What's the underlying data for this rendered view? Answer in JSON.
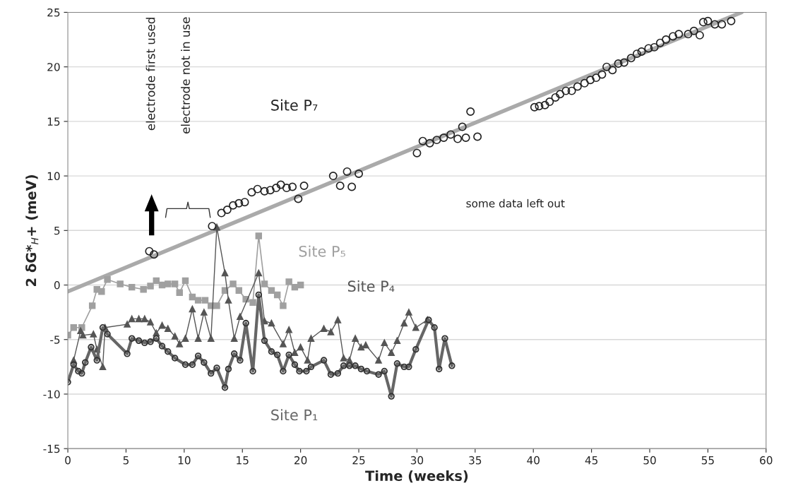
{
  "chart_data": {
    "type": "line",
    "xlabel": "Time (weeks)",
    "ylabel": "2 δG*$_{H}$+ (meV)",
    "xlim": [
      0,
      60
    ],
    "xticks": [
      0,
      5,
      10,
      15,
      20,
      25,
      30,
      35,
      40,
      45,
      50,
      55,
      60
    ],
    "ylim": [
      -15,
      25
    ],
    "yticks": [
      -15,
      -10,
      -5,
      0,
      5,
      10,
      15,
      20,
      25
    ],
    "grid": "y",
    "legend": false,
    "annotations": [
      "electrode first used",
      "electrode not in use",
      "some data left out"
    ],
    "series": [
      {
        "name": "Site P₇",
        "type": "scatter",
        "marker": "circle",
        "color": "#222222",
        "x": [
          7.0,
          7.4,
          12.4,
          13.2,
          13.7,
          14.2,
          14.7,
          15.2,
          15.8,
          16.3,
          16.9,
          17.4,
          17.9,
          18.3,
          18.8,
          19.3,
          19.8,
          20.3,
          22.8,
          23.4,
          24.0,
          24.4,
          25.0,
          30.0,
          30.5,
          31.1,
          31.7,
          32.3,
          32.9,
          33.5,
          33.9,
          34.2,
          34.6,
          35.2,
          40.1,
          40.5,
          41.0,
          41.4,
          41.9,
          42.3,
          42.8,
          43.3,
          43.8,
          44.4,
          44.9,
          45.4,
          45.9,
          46.3,
          46.8,
          47.3,
          47.8,
          48.4,
          48.9,
          49.3,
          49.9,
          50.4,
          50.9,
          51.4,
          52.0,
          52.5,
          53.3,
          53.8,
          54.3,
          54.6,
          55.0,
          55.6,
          56.2,
          57.0
        ],
        "values": [
          3.1,
          2.8,
          5.4,
          6.6,
          6.9,
          7.3,
          7.5,
          7.6,
          8.5,
          8.8,
          8.6,
          8.7,
          8.9,
          9.2,
          8.9,
          9.0,
          7.9,
          9.1,
          10.0,
          9.1,
          10.4,
          9.0,
          10.2,
          12.1,
          13.2,
          13.0,
          13.3,
          13.5,
          13.8,
          13.4,
          14.5,
          13.5,
          15.9,
          13.6,
          16.3,
          16.4,
          16.5,
          16.8,
          17.2,
          17.5,
          17.8,
          17.8,
          18.2,
          18.5,
          18.8,
          19.0,
          19.3,
          20.0,
          19.7,
          20.3,
          20.4,
          20.8,
          21.2,
          21.4,
          21.7,
          21.8,
          22.2,
          22.5,
          22.8,
          23.0,
          23.0,
          23.3,
          22.9,
          24.1,
          24.2,
          23.9,
          23.9,
          24.2
        ]
      },
      {
        "type": "line",
        "color": "#aaaaaa",
        "marker": "none",
        "x": [
          0,
          57.9
        ],
        "values": [
          -0.6,
          25
        ]
      },
      {
        "name": "Site P₅",
        "marker": "square",
        "color": "#a0a0a0",
        "x": [
          0,
          0.5,
          1.2,
          2.1,
          2.5,
          2.9,
          3.4,
          4.5,
          5.5,
          6.5,
          7.1,
          7.6,
          8.1,
          8.6,
          9.2,
          9.6,
          10.1,
          10.7,
          11.2,
          11.8,
          12.3,
          12.8,
          13.5,
          14.2,
          14.7,
          15.3,
          15.9,
          16.4,
          16.9,
          17.5,
          18.0,
          18.5,
          19.0,
          19.5,
          20.0
        ],
        "values": [
          -4.6,
          -3.9,
          -3.9,
          -1.9,
          -0.4,
          -0.6,
          0.5,
          0.1,
          -0.2,
          -0.4,
          -0.1,
          0.4,
          0.0,
          0.1,
          0.1,
          -0.7,
          0.4,
          -1.1,
          -1.4,
          -1.4,
          -1.9,
          -1.9,
          -0.5,
          0.1,
          -0.5,
          -1.3,
          -1.6,
          4.5,
          0.1,
          -0.5,
          -0.9,
          -1.9,
          0.3,
          -0.2,
          0.0
        ]
      },
      {
        "name": "Site P₄",
        "marker": "triangle",
        "color": "#555555",
        "x": [
          0.5,
          1.1,
          1.3,
          2.2,
          2.5,
          3.0,
          3.2,
          5.1,
          5.5,
          6.1,
          6.6,
          7.1,
          7.6,
          8.1,
          8.6,
          9.2,
          9.6,
          10.1,
          10.7,
          11.2,
          11.7,
          12.3,
          12.8,
          13.5,
          13.8,
          14.3,
          14.8,
          16.4,
          16.9,
          17.5,
          18.5,
          19.0,
          19.5,
          20.0,
          20.6,
          20.9,
          22.0,
          22.6,
          23.2,
          23.7,
          24.2,
          24.7,
          25.2,
          25.6,
          26.7,
          27.2,
          27.8,
          28.3,
          28.9,
          29.3,
          29.9,
          30.9
        ],
        "values": [
          -6.9,
          -4.2,
          -4.6,
          -4.5,
          -5.9,
          -7.5,
          -3.9,
          -3.6,
          -3.1,
          -3.1,
          -3.1,
          -3.4,
          -4.4,
          -3.7,
          -4.0,
          -4.7,
          -5.4,
          -4.9,
          -2.2,
          -4.9,
          -2.5,
          -4.9,
          5.3,
          1.1,
          -1.4,
          -4.9,
          -2.9,
          1.1,
          -3.3,
          -3.5,
          -5.4,
          -4.1,
          -6.2,
          -5.7,
          -6.9,
          -4.9,
          -4.0,
          -4.3,
          -3.2,
          -6.7,
          -6.9,
          -4.9,
          -5.7,
          -5.5,
          -6.9,
          -5.3,
          -6.2,
          -5.1,
          -3.5,
          -2.5,
          -3.9,
          -3.2
        ]
      },
      {
        "name": "Site P₁",
        "marker": "circle",
        "color": "#666666",
        "x": [
          0,
          0.5,
          0.9,
          1.2,
          1.5,
          2.0,
          2.5,
          3.0,
          3.4,
          5.1,
          5.5,
          6.1,
          6.6,
          7.1,
          7.6,
          8.1,
          8.6,
          9.2,
          10.1,
          10.7,
          11.2,
          11.7,
          12.3,
          12.8,
          13.5,
          13.8,
          14.3,
          14.8,
          15.3,
          15.9,
          16.4,
          16.9,
          17.5,
          18.0,
          18.5,
          19.0,
          19.5,
          19.9,
          20.5,
          20.9,
          22.0,
          22.6,
          23.2,
          23.7,
          24.2,
          24.7,
          25.2,
          25.7,
          26.7,
          27.2,
          27.8,
          28.3,
          28.9,
          29.3,
          29.9,
          31.0,
          31.5,
          31.9,
          32.4,
          33.0
        ],
        "values": [
          -8.9,
          -7.3,
          -7.9,
          -8.1,
          -7.1,
          -5.7,
          -6.9,
          -3.9,
          -4.5,
          -6.3,
          -4.9,
          -5.1,
          -5.3,
          -5.2,
          -4.9,
          -5.6,
          -6.1,
          -6.7,
          -7.3,
          -7.3,
          -6.5,
          -7.1,
          -8.1,
          -7.6,
          -9.4,
          -7.7,
          -6.3,
          -6.9,
          -3.5,
          -7.9,
          -0.9,
          -5.1,
          -6.1,
          -6.4,
          -7.9,
          -6.4,
          -7.3,
          -7.9,
          -7.9,
          -7.5,
          -6.9,
          -8.2,
          -8.1,
          -7.4,
          -7.4,
          -7.4,
          -7.7,
          -7.9,
          -8.2,
          -7.9,
          -10.2,
          -7.2,
          -7.5,
          -7.5,
          -5.9,
          -3.2,
          -3.9,
          -7.7,
          -4.9,
          -7.4
        ]
      }
    ]
  }
}
